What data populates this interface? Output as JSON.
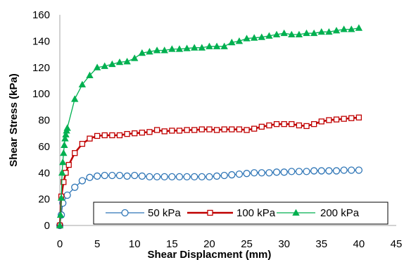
{
  "chart_data": {
    "type": "line",
    "title": "",
    "xlabel": "Shear Displacment (mm)",
    "ylabel": "Shear Stress (kPa)",
    "xlim": [
      0,
      45
    ],
    "ylim": [
      0,
      160
    ],
    "xticks": [
      0,
      5,
      10,
      15,
      20,
      25,
      30,
      35,
      40,
      45
    ],
    "yticks": [
      0,
      20,
      40,
      60,
      80,
      100,
      120,
      140,
      160
    ],
    "grid": false,
    "legend_position": "bottom-right",
    "series": [
      {
        "name": "50 kPa",
        "color": "#2e75b6",
        "marker": "circle",
        "x": [
          0,
          0.2,
          0.4,
          1,
          2,
          3,
          4,
          5,
          6,
          7,
          8,
          9,
          10,
          11,
          12,
          13,
          14,
          15,
          16,
          17,
          18,
          19,
          20,
          21,
          22,
          23,
          24,
          25,
          26,
          27,
          28,
          29,
          30,
          31,
          32,
          33,
          34,
          35,
          36,
          37,
          38,
          39,
          40
        ],
        "y": [
          0,
          8,
          17,
          23,
          29,
          34,
          36.5,
          37.5,
          38,
          38,
          38,
          37.5,
          38,
          37.5,
          37,
          37,
          37,
          37,
          37,
          37,
          37,
          37,
          37,
          37.5,
          38,
          38.5,
          39,
          39.5,
          40,
          40,
          40,
          40.5,
          40.5,
          41,
          41,
          41,
          41.5,
          41.5,
          41.5,
          41.5,
          42,
          42,
          42
        ]
      },
      {
        "name": "100 kPa",
        "color": "#c00000",
        "marker": "square",
        "x": [
          0,
          0.2,
          0.5,
          0.8,
          1.2,
          2,
          3,
          4,
          5,
          6,
          7,
          8,
          9,
          10,
          11,
          12,
          13,
          14,
          15,
          16,
          17,
          18,
          19,
          20,
          21,
          22,
          23,
          24,
          25,
          26,
          27,
          28,
          29,
          30,
          31,
          32,
          33,
          34,
          35,
          36,
          37,
          38,
          39,
          40
        ],
        "y": [
          0,
          22,
          33,
          40,
          46,
          55,
          62,
          66,
          68,
          68.5,
          68.5,
          68.5,
          69.5,
          70,
          70.5,
          71,
          72.5,
          71.5,
          72,
          72,
          72.5,
          72.5,
          73,
          73,
          72.5,
          73,
          73,
          73,
          72.5,
          73.5,
          75,
          76,
          77,
          77,
          77,
          76,
          75.5,
          77,
          79,
          80,
          80.5,
          81,
          81.5,
          82
        ]
      },
      {
        "name": "200 kPa",
        "color": "#00b050",
        "marker": "triangle",
        "x": [
          0,
          0.1,
          0.2,
          0.3,
          0.4,
          0.5,
          0.6,
          0.7,
          0.8,
          0.9,
          1,
          2,
          3,
          4,
          5,
          6,
          7,
          8,
          9,
          10,
          11,
          12,
          13,
          14,
          15,
          16,
          17,
          18,
          19,
          20,
          21,
          22,
          23,
          24,
          25,
          26,
          27,
          28,
          29,
          30,
          31,
          32,
          33,
          34,
          35,
          36,
          37,
          38,
          39,
          40
        ],
        "y": [
          0,
          8,
          21,
          40,
          48,
          55,
          61,
          66,
          69,
          72,
          74,
          96,
          107,
          114,
          120,
          121,
          122.5,
          124,
          124.5,
          127,
          131,
          132,
          133,
          133,
          134,
          134,
          134.5,
          135,
          135,
          136,
          136,
          136,
          139,
          140,
          142,
          142.5,
          143,
          144,
          145,
          146,
          145,
          145,
          146,
          146,
          147,
          147,
          148,
          149,
          149,
          150
        ]
      }
    ]
  }
}
